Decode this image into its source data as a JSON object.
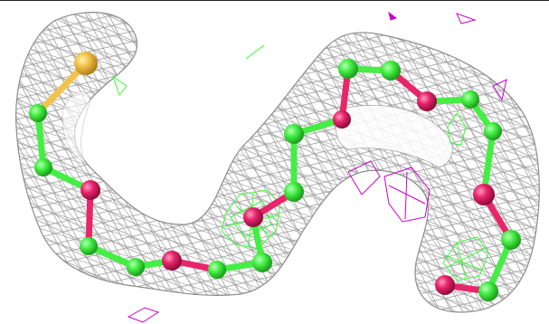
{
  "image": {
    "description_free": true,
    "colors": {
      "background": "#ffffff",
      "mesh_grey": "#9a9a9a",
      "mesh_green": "#33ff33",
      "mesh_magenta": "#cc00cc",
      "carbon": "#44ee44",
      "oxygen": "#e8246a",
      "sulfur": "#f2c24a"
    }
  }
}
